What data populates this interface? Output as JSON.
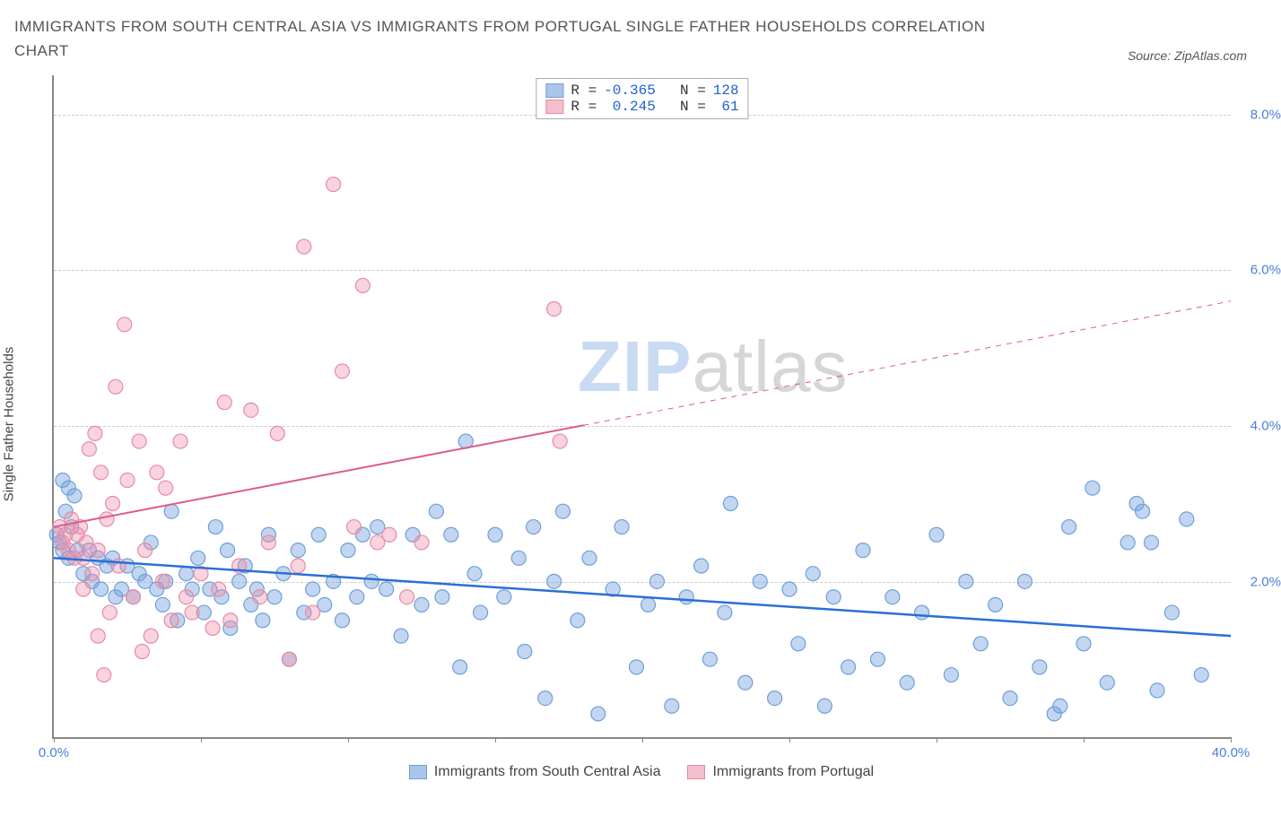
{
  "title": "IMMIGRANTS FROM SOUTH CENTRAL ASIA VS IMMIGRANTS FROM PORTUGAL SINGLE FATHER HOUSEHOLDS CORRELATION CHART",
  "source": "Source: ZipAtlas.com",
  "y_axis_label": "Single Father Households",
  "watermark_a": "ZIP",
  "watermark_b": "atlas",
  "chart": {
    "type": "scatter",
    "x_domain": [
      0,
      40
    ],
    "y_domain": [
      0,
      8.5
    ],
    "x_ticks": [
      0,
      5,
      10,
      15,
      20,
      25,
      30,
      35,
      40
    ],
    "x_tick_labels": {
      "0": "0.0%",
      "40": "40.0%"
    },
    "y_ticks": [
      2,
      4,
      6,
      8
    ],
    "y_tick_labels": {
      "2": "2.0%",
      "4": "4.0%",
      "6": "6.0%",
      "8": "8.0%"
    },
    "grid_color": "#cccccc",
    "axis_color": "#888888",
    "background": "#ffffff",
    "series": [
      {
        "name": "Immigrants from South Central Asia",
        "color_fill": "rgba(120,165,225,0.45)",
        "color_stroke": "#6f9fd8",
        "legend_swatch_fill": "#a9c6ea",
        "legend_swatch_stroke": "#6f9fd8",
        "marker_radius": 8,
        "R": "-0.365",
        "N": "128",
        "trend": {
          "x1": 0,
          "y1": 2.3,
          "x2": 40,
          "y2": 1.3,
          "stroke": "#2a6fd6",
          "width": 2.5,
          "dash": "none"
        },
        "points": [
          [
            0.1,
            2.6
          ],
          [
            0.2,
            2.5
          ],
          [
            0.3,
            3.3
          ],
          [
            0.3,
            2.4
          ],
          [
            0.4,
            2.9
          ],
          [
            0.5,
            3.2
          ],
          [
            0.5,
            2.3
          ],
          [
            0.6,
            2.7
          ],
          [
            0.7,
            3.1
          ],
          [
            0.8,
            2.4
          ],
          [
            1.0,
            2.1
          ],
          [
            1.2,
            2.4
          ],
          [
            1.3,
            2.0
          ],
          [
            1.5,
            2.3
          ],
          [
            1.6,
            1.9
          ],
          [
            1.8,
            2.2
          ],
          [
            2.0,
            2.3
          ],
          [
            2.1,
            1.8
          ],
          [
            2.3,
            1.9
          ],
          [
            2.5,
            2.2
          ],
          [
            2.7,
            1.8
          ],
          [
            2.9,
            2.1
          ],
          [
            3.1,
            2.0
          ],
          [
            3.3,
            2.5
          ],
          [
            3.5,
            1.9
          ],
          [
            3.7,
            1.7
          ],
          [
            3.8,
            2.0
          ],
          [
            4.0,
            2.9
          ],
          [
            4.2,
            1.5
          ],
          [
            4.5,
            2.1
          ],
          [
            4.7,
            1.9
          ],
          [
            4.9,
            2.3
          ],
          [
            5.1,
            1.6
          ],
          [
            5.3,
            1.9
          ],
          [
            5.5,
            2.7
          ],
          [
            5.7,
            1.8
          ],
          [
            5.9,
            2.4
          ],
          [
            6.0,
            1.4
          ],
          [
            6.3,
            2.0
          ],
          [
            6.5,
            2.2
          ],
          [
            6.7,
            1.7
          ],
          [
            6.9,
            1.9
          ],
          [
            7.1,
            1.5
          ],
          [
            7.3,
            2.6
          ],
          [
            7.5,
            1.8
          ],
          [
            7.8,
            2.1
          ],
          [
            8.0,
            1.0
          ],
          [
            8.3,
            2.4
          ],
          [
            8.5,
            1.6
          ],
          [
            8.8,
            1.9
          ],
          [
            9.0,
            2.6
          ],
          [
            9.2,
            1.7
          ],
          [
            9.5,
            2.0
          ],
          [
            9.8,
            1.5
          ],
          [
            10.0,
            2.4
          ],
          [
            10.3,
            1.8
          ],
          [
            10.5,
            2.6
          ],
          [
            10.8,
            2.0
          ],
          [
            11.0,
            2.7
          ],
          [
            11.3,
            1.9
          ],
          [
            11.8,
            1.3
          ],
          [
            12.2,
            2.6
          ],
          [
            12.5,
            1.7
          ],
          [
            13.0,
            2.9
          ],
          [
            13.2,
            1.8
          ],
          [
            13.5,
            2.6
          ],
          [
            13.8,
            0.9
          ],
          [
            14.0,
            3.8
          ],
          [
            14.3,
            2.1
          ],
          [
            14.5,
            1.6
          ],
          [
            15.0,
            2.6
          ],
          [
            15.3,
            1.8
          ],
          [
            15.8,
            2.3
          ],
          [
            16.0,
            1.1
          ],
          [
            16.3,
            2.7
          ],
          [
            16.7,
            0.5
          ],
          [
            17.0,
            2.0
          ],
          [
            17.3,
            2.9
          ],
          [
            17.8,
            1.5
          ],
          [
            18.2,
            2.3
          ],
          [
            18.5,
            0.3
          ],
          [
            19.0,
            1.9
          ],
          [
            19.3,
            2.7
          ],
          [
            19.8,
            0.9
          ],
          [
            20.2,
            1.7
          ],
          [
            20.5,
            2.0
          ],
          [
            21.0,
            0.4
          ],
          [
            21.5,
            1.8
          ],
          [
            22.0,
            2.2
          ],
          [
            22.3,
            1.0
          ],
          [
            22.8,
            1.6
          ],
          [
            23.0,
            3.0
          ],
          [
            23.5,
            0.7
          ],
          [
            24.0,
            2.0
          ],
          [
            24.5,
            0.5
          ],
          [
            25.0,
            1.9
          ],
          [
            25.3,
            1.2
          ],
          [
            25.8,
            2.1
          ],
          [
            26.2,
            0.4
          ],
          [
            26.5,
            1.8
          ],
          [
            27.0,
            0.9
          ],
          [
            27.5,
            2.4
          ],
          [
            28.0,
            1.0
          ],
          [
            28.5,
            1.8
          ],
          [
            29.0,
            0.7
          ],
          [
            29.5,
            1.6
          ],
          [
            30.0,
            2.6
          ],
          [
            30.5,
            0.8
          ],
          [
            31.0,
            2.0
          ],
          [
            31.5,
            1.2
          ],
          [
            32.0,
            1.7
          ],
          [
            32.5,
            0.5
          ],
          [
            33.0,
            2.0
          ],
          [
            33.5,
            0.9
          ],
          [
            34.0,
            0.3
          ],
          [
            34.2,
            0.4
          ],
          [
            34.5,
            2.7
          ],
          [
            35.0,
            1.2
          ],
          [
            35.3,
            3.2
          ],
          [
            35.8,
            0.7
          ],
          [
            36.5,
            2.5
          ],
          [
            36.8,
            3.0
          ],
          [
            37.0,
            2.9
          ],
          [
            37.3,
            2.5
          ],
          [
            37.5,
            0.6
          ],
          [
            38.0,
            1.6
          ],
          [
            38.5,
            2.8
          ],
          [
            39.0,
            0.8
          ]
        ]
      },
      {
        "name": "Immigrants from Portugal",
        "color_fill": "rgba(240,145,170,0.40)",
        "color_stroke": "#e78aa5",
        "legend_swatch_fill": "#f3bfcd",
        "legend_swatch_stroke": "#e78aa5",
        "marker_radius": 8,
        "R": "0.245",
        "N": "61",
        "trend": {
          "x1": 0,
          "y1": 2.7,
          "x2": 40,
          "y2": 5.6,
          "stroke": "#dd5a88",
          "width": 2,
          "dash": "none",
          "dash_after_x": 18
        },
        "points": [
          [
            0.2,
            2.7
          ],
          [
            0.3,
            2.5
          ],
          [
            0.4,
            2.6
          ],
          [
            0.5,
            2.4
          ],
          [
            0.6,
            2.8
          ],
          [
            0.7,
            2.3
          ],
          [
            0.8,
            2.6
          ],
          [
            0.9,
            2.7
          ],
          [
            1.0,
            2.3
          ],
          [
            1.0,
            1.9
          ],
          [
            1.1,
            2.5
          ],
          [
            1.2,
            3.7
          ],
          [
            1.3,
            2.1
          ],
          [
            1.4,
            3.9
          ],
          [
            1.5,
            2.4
          ],
          [
            1.5,
            1.3
          ],
          [
            1.6,
            3.4
          ],
          [
            1.7,
            0.8
          ],
          [
            1.8,
            2.8
          ],
          [
            1.9,
            1.6
          ],
          [
            2.0,
            3.0
          ],
          [
            2.1,
            4.5
          ],
          [
            2.2,
            2.2
          ],
          [
            2.4,
            5.3
          ],
          [
            2.5,
            3.3
          ],
          [
            2.7,
            1.8
          ],
          [
            2.9,
            3.8
          ],
          [
            3.0,
            1.1
          ],
          [
            3.1,
            2.4
          ],
          [
            3.3,
            1.3
          ],
          [
            3.5,
            3.4
          ],
          [
            3.7,
            2.0
          ],
          [
            3.8,
            3.2
          ],
          [
            4.0,
            1.5
          ],
          [
            4.3,
            3.8
          ],
          [
            4.5,
            1.8
          ],
          [
            4.7,
            1.6
          ],
          [
            5.0,
            2.1
          ],
          [
            5.4,
            1.4
          ],
          [
            5.6,
            1.9
          ],
          [
            5.8,
            4.3
          ],
          [
            6.0,
            1.5
          ],
          [
            6.3,
            2.2
          ],
          [
            6.7,
            4.2
          ],
          [
            7.0,
            1.8
          ],
          [
            7.3,
            2.5
          ],
          [
            7.6,
            3.9
          ],
          [
            8.0,
            1.0
          ],
          [
            8.3,
            2.2
          ],
          [
            8.5,
            6.3
          ],
          [
            8.8,
            1.6
          ],
          [
            9.5,
            7.1
          ],
          [
            9.8,
            4.7
          ],
          [
            10.2,
            2.7
          ],
          [
            10.5,
            5.8
          ],
          [
            11.0,
            2.5
          ],
          [
            11.4,
            2.6
          ],
          [
            12.0,
            1.8
          ],
          [
            12.5,
            2.5
          ],
          [
            17.0,
            5.5
          ],
          [
            17.2,
            3.8
          ]
        ]
      }
    ],
    "bottom_legend": [
      "Immigrants from South Central Asia",
      "Immigrants from Portugal"
    ]
  }
}
